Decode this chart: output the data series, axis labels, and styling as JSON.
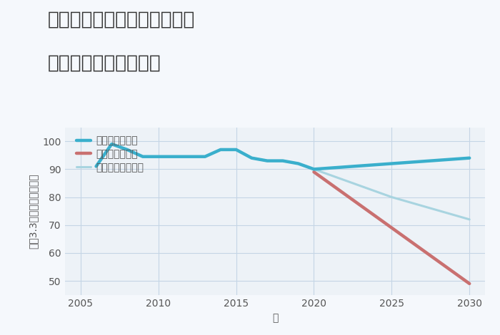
{
  "title_line1": "兵庫県姫路市飾磨区中野田の",
  "title_line2": "中古戸建ての価格推移",
  "xlabel": "年",
  "ylabel": "坪（3.3㎡）単価（万円）",
  "fig_background": "#f5f8fc",
  "plot_background": "#edf2f7",
  "grid_color": "#c5d5e5",
  "ylim": [
    45,
    105
  ],
  "yticks": [
    50,
    60,
    70,
    80,
    90,
    100
  ],
  "xlim": [
    2004,
    2031
  ],
  "xticks": [
    2005,
    2010,
    2015,
    2020,
    2025,
    2030
  ],
  "good_scenario": {
    "label": "グッドシナリオ",
    "color": "#3aafcc",
    "linewidth": 3.2,
    "x": [
      2006,
      2007,
      2008,
      2009,
      2010,
      2011,
      2012,
      2013,
      2014,
      2015,
      2016,
      2017,
      2018,
      2019,
      2020,
      2025,
      2030
    ],
    "y": [
      91,
      99,
      97,
      94.5,
      94.5,
      94.5,
      94.5,
      94.5,
      97,
      97,
      94,
      93,
      93,
      92,
      90,
      92,
      94
    ]
  },
  "bad_scenario": {
    "label": "バッドシナリオ",
    "color": "#c97070",
    "linewidth": 3.2,
    "x": [
      2020,
      2030
    ],
    "y": [
      89,
      49
    ]
  },
  "normal_scenario": {
    "label": "ノーマルシナリオ",
    "color": "#a8d4e0",
    "linewidth": 2.2,
    "x": [
      2006,
      2007,
      2008,
      2009,
      2010,
      2011,
      2012,
      2013,
      2014,
      2015,
      2016,
      2017,
      2018,
      2019,
      2020,
      2025,
      2030
    ],
    "y": [
      91,
      99,
      97,
      94.5,
      94.5,
      94.5,
      94.5,
      94.5,
      97,
      97,
      94,
      93,
      93,
      92,
      90,
      80,
      72
    ]
  },
  "title_fontsize": 19,
  "axis_label_fontsize": 10,
  "tick_fontsize": 10,
  "legend_fontsize": 10
}
